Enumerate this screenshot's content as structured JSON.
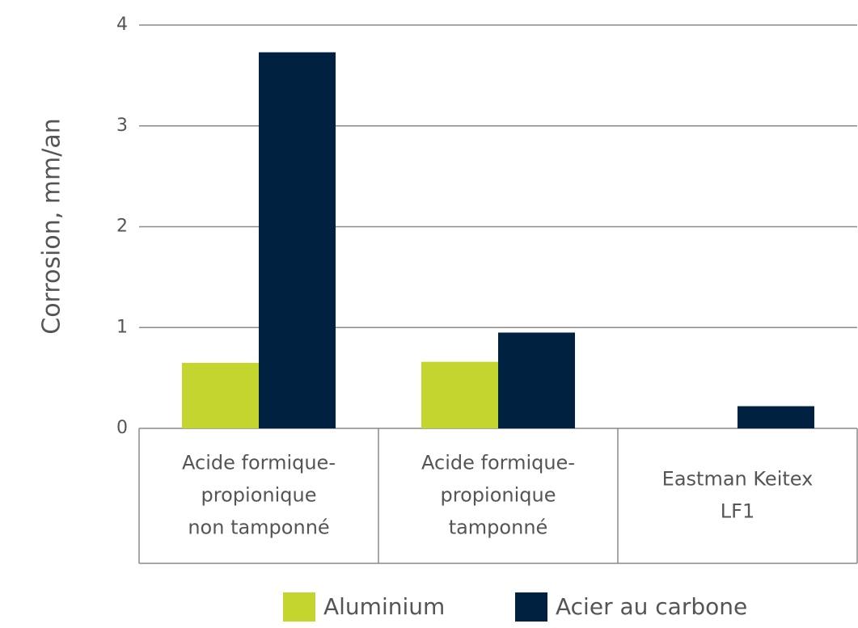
{
  "chart_data": {
    "type": "bar",
    "ylabel": "Corrosion, mm/an",
    "categories": [
      [
        "Acide formique-",
        "propionique",
        "non tamponné"
      ],
      [
        "Acide formique-",
        "propionique",
        "tamponné"
      ],
      [
        "Eastman Keitex",
        "LF1"
      ]
    ],
    "series": [
      {
        "name": "Aluminium",
        "color": "#c4d52f",
        "values": [
          0.65,
          0.66,
          null
        ]
      },
      {
        "name": "Acier au carbone",
        "color": "#00213f",
        "values": [
          3.73,
          0.95,
          0.22
        ]
      }
    ],
    "ylim": [
      0,
      4
    ],
    "yticks": [
      0,
      1,
      2,
      3,
      4
    ],
    "grid": true,
    "legend": "bottom"
  }
}
